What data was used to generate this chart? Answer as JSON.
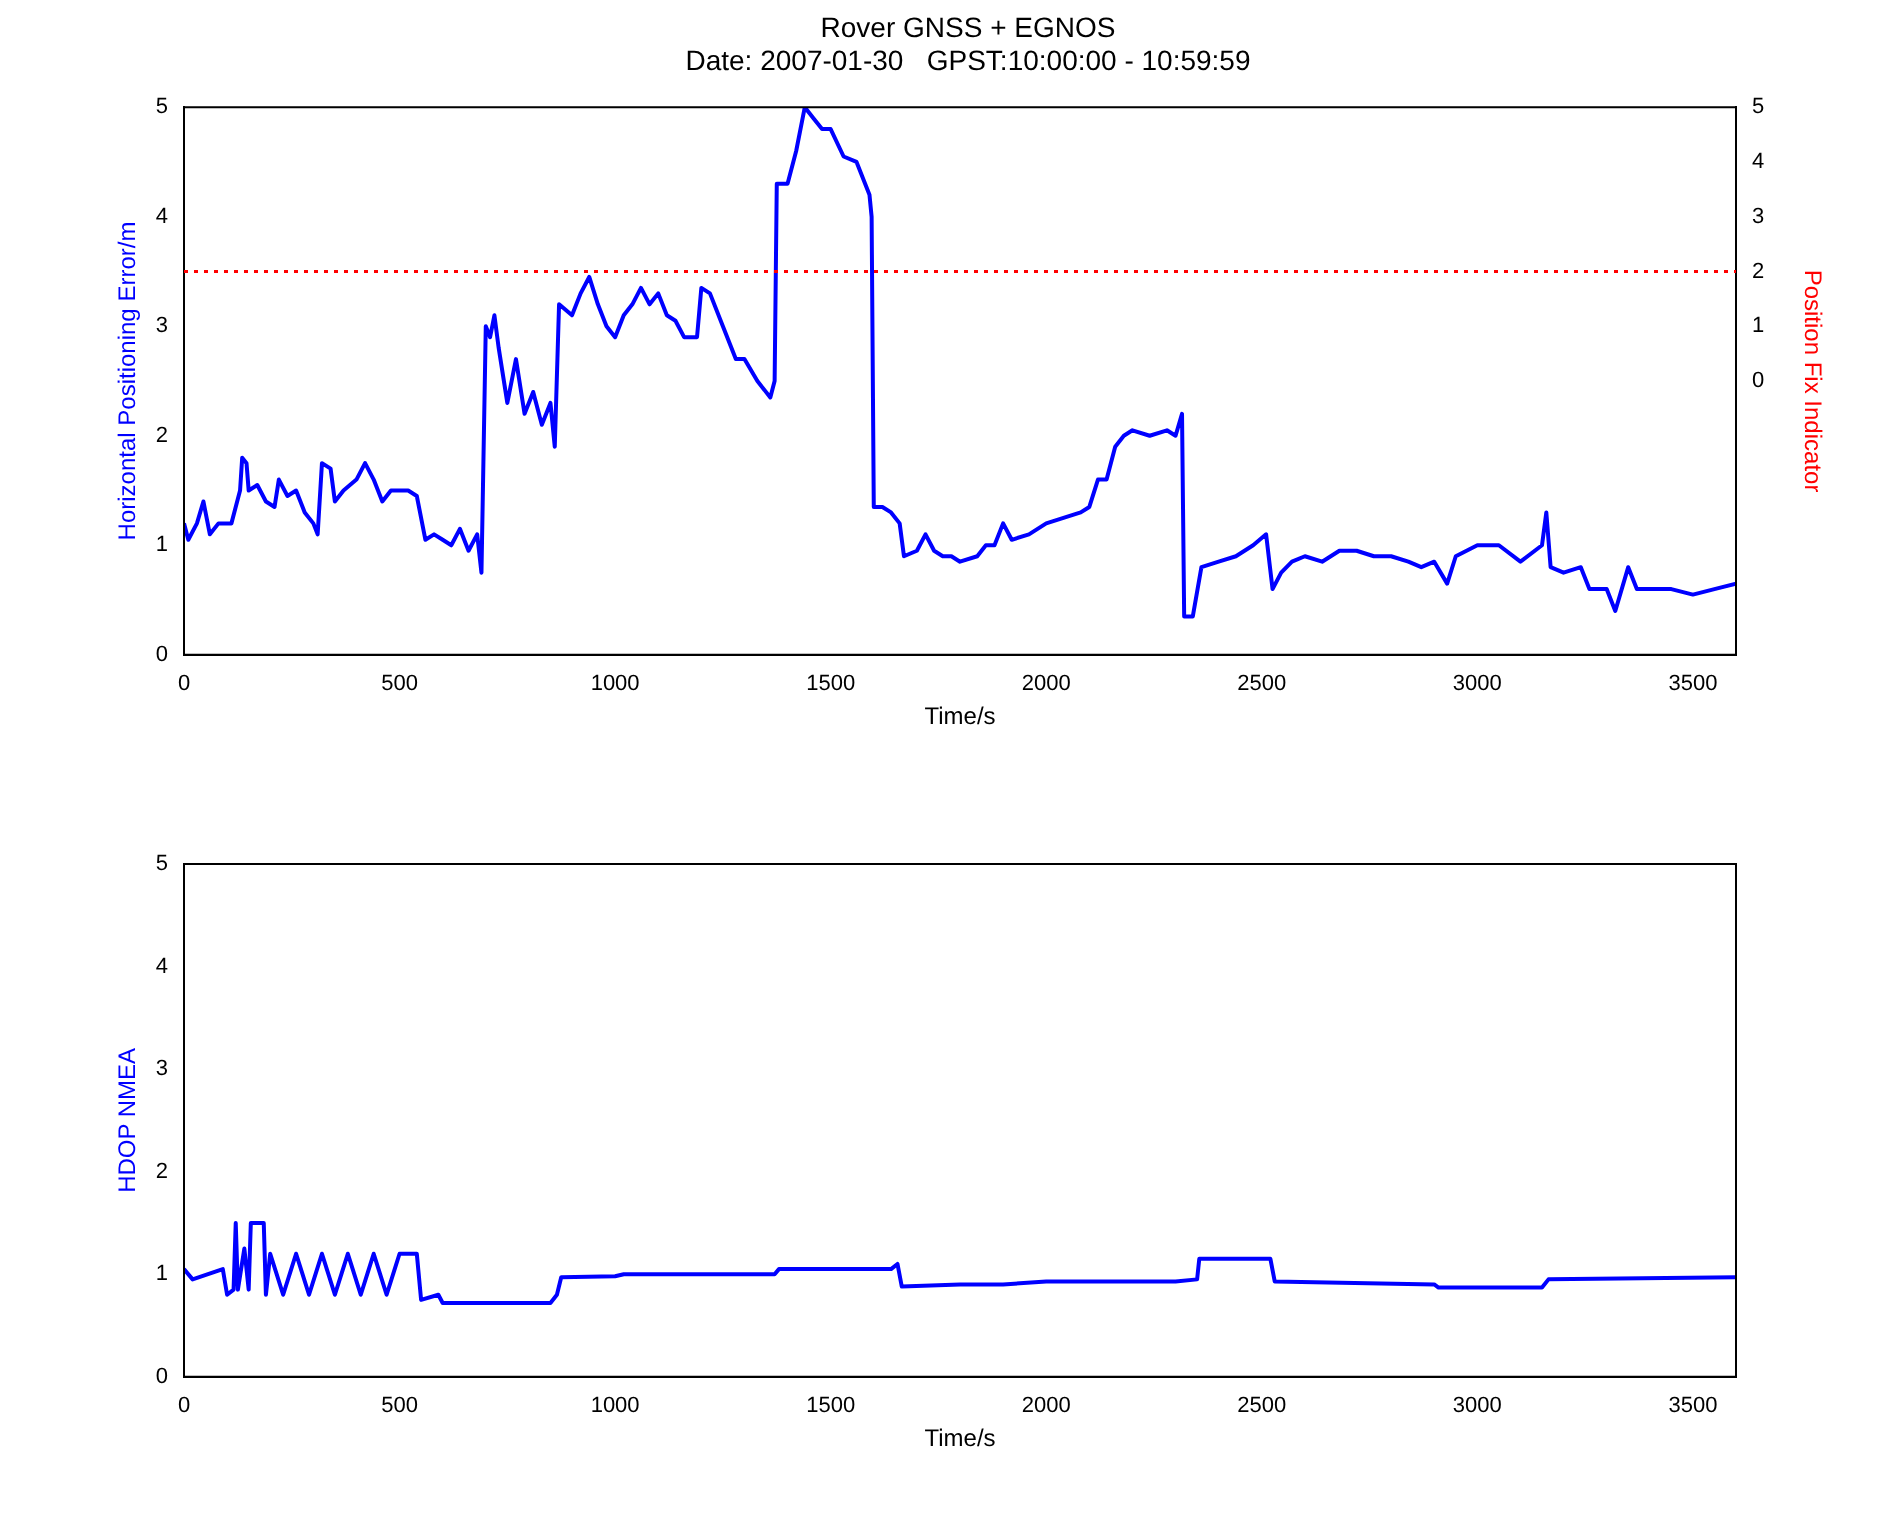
{
  "chart_data": [
    {
      "type": "line",
      "title": "Rover GNSS + EGNOS",
      "subtitle": "Date: 2007-01-30   GPST:10:00:00 - 10:59:59",
      "xlabel": "Time/s",
      "ylabel": "Horizontal Positioning Error/m",
      "y2label": "Position Fix Indicator",
      "x": [
        0,
        10,
        30,
        45,
        60,
        80,
        110,
        130,
        135,
        145,
        150,
        170,
        190,
        210,
        220,
        240,
        260,
        280,
        300,
        310,
        320,
        340,
        350,
        370,
        400,
        420,
        440,
        460,
        480,
        520,
        540,
        560,
        580,
        600,
        620,
        640,
        660,
        680,
        690,
        700,
        710,
        720,
        730,
        750,
        770,
        790,
        810,
        830,
        850,
        860,
        870,
        900,
        920,
        940,
        960,
        980,
        1000,
        1020,
        1040,
        1060,
        1080,
        1100,
        1120,
        1140,
        1160,
        1190,
        1200,
        1220,
        1250,
        1280,
        1300,
        1330,
        1360,
        1370,
        1375,
        1400,
        1420,
        1440,
        1460,
        1480,
        1500,
        1530,
        1560,
        1590,
        1595,
        1600,
        1620,
        1640,
        1660,
        1670,
        1700,
        1720,
        1740,
        1760,
        1780,
        1800,
        1840,
        1860,
        1880,
        1900,
        1920,
        1960,
        2000,
        2040,
        2080,
        2100,
        2120,
        2140,
        2160,
        2180,
        2200,
        2240,
        2280,
        2300,
        2315,
        2320,
        2340,
        2360,
        2400,
        2440,
        2480,
        2510,
        2525,
        2545,
        2570,
        2600,
        2640,
        2680,
        2720,
        2760,
        2800,
        2840,
        2870,
        2900,
        2930,
        2950,
        3000,
        3050,
        3100,
        3150,
        3160,
        3170,
        3200,
        3240,
        3260,
        3300,
        3320,
        3350,
        3370,
        3400,
        3450,
        3500,
        3550,
        3600
      ],
      "series": [
        {
          "color": "#0000ff",
          "values": [
            1.2,
            1.05,
            1.2,
            1.4,
            1.1,
            1.2,
            1.2,
            1.5,
            1.8,
            1.75,
            1.5,
            1.55,
            1.4,
            1.35,
            1.6,
            1.45,
            1.5,
            1.3,
            1.2,
            1.1,
            1.75,
            1.7,
            1.4,
            1.5,
            1.6,
            1.75,
            1.6,
            1.4,
            1.5,
            1.5,
            1.45,
            1.05,
            1.1,
            1.05,
            1.0,
            1.15,
            0.95,
            1.1,
            0.75,
            3.0,
            2.9,
            3.1,
            2.8,
            2.3,
            2.7,
            2.2,
            2.4,
            2.1,
            2.3,
            1.9,
            3.2,
            3.1,
            3.3,
            3.45,
            3.2,
            3.0,
            2.9,
            3.1,
            3.2,
            3.35,
            3.2,
            3.3,
            3.1,
            3.05,
            2.9,
            2.9,
            3.35,
            3.3,
            3.0,
            2.7,
            2.7,
            2.5,
            2.35,
            2.5,
            4.3,
            4.3,
            4.6,
            5.0,
            4.9,
            4.8,
            4.8,
            4.55,
            4.5,
            4.2,
            4.0,
            1.35,
            1.35,
            1.3,
            1.2,
            0.9,
            0.95,
            1.1,
            0.95,
            0.9,
            0.9,
            0.85,
            0.9,
            1.0,
            1.0,
            1.2,
            1.05,
            1.1,
            1.2,
            1.25,
            1.3,
            1.35,
            1.6,
            1.6,
            1.9,
            2.0,
            2.05,
            2.0,
            2.05,
            2.0,
            2.2,
            0.35,
            0.35,
            0.8,
            0.85,
            0.9,
            1.0,
            1.1,
            0.6,
            0.75,
            0.85,
            0.9,
            0.85,
            0.95,
            0.95,
            0.9,
            0.9,
            0.85,
            0.8,
            0.85,
            0.65,
            0.9,
            1.0,
            1.0,
            0.85,
            1.0,
            1.3,
            0.8,
            0.75,
            0.8,
            0.6,
            0.6,
            0.4,
            0.8,
            0.6,
            0.6,
            0.6,
            0.55,
            0.6,
            0.65
          ]
        }
      ],
      "xlim": [
        0,
        3600
      ],
      "xticks": [
        0,
        500,
        1000,
        1500,
        2000,
        2500,
        3000,
        3500
      ],
      "ylim": [
        0,
        5
      ],
      "yticks": [
        0,
        1,
        2,
        3,
        4,
        5
      ],
      "y2lim": [
        -5,
        5
      ],
      "y2ticks": [
        0,
        1,
        2,
        3,
        4,
        5
      ],
      "ref_lines": [
        {
          "axis": "y2",
          "value": 2,
          "color": "#ff0000",
          "line_style": "dotted"
        }
      ],
      "grid": false,
      "legend": false,
      "marker": "none"
    },
    {
      "type": "line",
      "xlabel": "Time/s",
      "ylabel": "HDOP NMEA",
      "x": [
        0,
        20,
        90,
        100,
        115,
        120,
        125,
        140,
        150,
        155,
        185,
        190,
        200,
        230,
        260,
        290,
        320,
        350,
        380,
        410,
        440,
        470,
        500,
        540,
        550,
        590,
        600,
        850,
        865,
        875,
        1000,
        1020,
        1370,
        1380,
        1640,
        1655,
        1665,
        1800,
        1900,
        2000,
        2300,
        2350,
        2355,
        2520,
        2530,
        2900,
        2910,
        3150,
        3165,
        3600
      ],
      "series": [
        {
          "color": "#0000ff",
          "values": [
            1.05,
            0.95,
            1.05,
            0.8,
            0.85,
            1.5,
            0.85,
            1.25,
            0.85,
            1.5,
            1.5,
            0.8,
            1.2,
            0.8,
            1.2,
            0.8,
            1.2,
            0.8,
            1.2,
            0.8,
            1.2,
            0.8,
            1.2,
            1.2,
            0.75,
            0.8,
            0.72,
            0.72,
            0.8,
            0.97,
            0.98,
            1.0,
            1.0,
            1.05,
            1.05,
            1.1,
            0.88,
            0.9,
            0.9,
            0.93,
            0.93,
            0.95,
            1.15,
            1.15,
            0.93,
            0.9,
            0.87,
            0.87,
            0.95,
            0.97
          ]
        }
      ],
      "xlim": [
        0,
        3600
      ],
      "xticks": [
        0,
        500,
        1000,
        1500,
        2000,
        2500,
        3000,
        3500
      ],
      "ylim": [
        0,
        5
      ],
      "yticks": [
        0,
        1,
        2,
        3,
        4,
        5
      ],
      "grid": false,
      "legend": false,
      "marker": "none"
    }
  ]
}
